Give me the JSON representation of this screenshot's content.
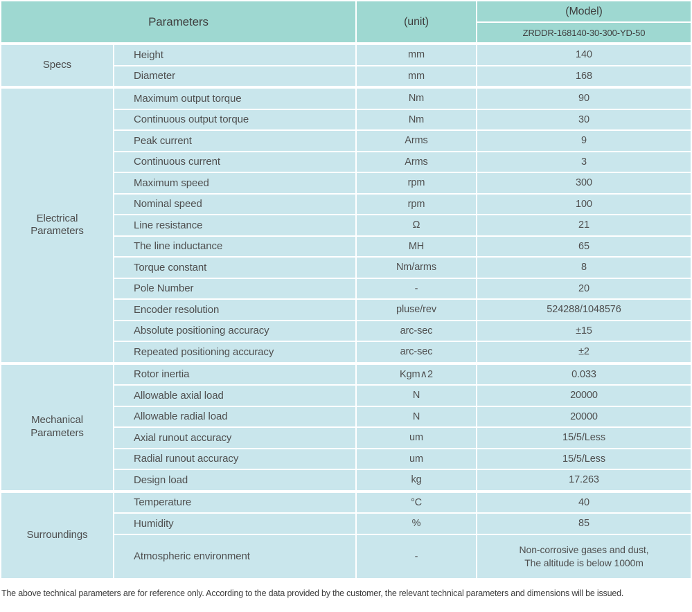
{
  "header": {
    "parameters_label": "Parameters",
    "unit_label": "(unit)",
    "model_label": "(Model)",
    "model_number": "ZRDDR-168140-30-300-YD-50"
  },
  "sections": [
    {
      "name": "Specs",
      "rows": [
        {
          "param": "Height",
          "unit": "mm",
          "value": "140"
        },
        {
          "param": "Diameter",
          "unit": "mm",
          "value": "168"
        }
      ]
    },
    {
      "name": "Electrical\nParameters",
      "rows": [
        {
          "param": "Maximum output torque",
          "unit": "Nm",
          "value": "90"
        },
        {
          "param": "Continuous output torque",
          "unit": "Nm",
          "value": "30"
        },
        {
          "param": "Peak current",
          "unit": "Arms",
          "value": "9"
        },
        {
          "param": "Continuous current",
          "unit": "Arms",
          "value": "3"
        },
        {
          "param": "Maximum speed",
          "unit": "rpm",
          "value": "300"
        },
        {
          "param": "Nominal speed",
          "unit": "rpm",
          "value": "100"
        },
        {
          "param": "Line resistance",
          "unit": "Ω",
          "value": "21"
        },
        {
          "param": "The line inductance",
          "unit": "MH",
          "value": "65"
        },
        {
          "param": "Torque constant",
          "unit": "Nm/arms",
          "value": "8"
        },
        {
          "param": "Pole Number",
          "unit": "-",
          "value": "20"
        },
        {
          "param": "Encoder resolution",
          "unit": "pluse/rev",
          "value": "524288/1048576"
        },
        {
          "param": "Absolute positioning accuracy",
          "unit": "arc-sec",
          "value": "±15"
        },
        {
          "param": "Repeated positioning accuracy",
          "unit": "arc-sec",
          "value": "±2"
        }
      ]
    },
    {
      "name": "Mechanical\nParameters",
      "rows": [
        {
          "param": "Rotor inertia",
          "unit": "Kgm∧2",
          "value": "0.033"
        },
        {
          "param": "Allowable axial load",
          "unit": "N",
          "value": "20000"
        },
        {
          "param": "Allowable radial load",
          "unit": "N",
          "value": "20000"
        },
        {
          "param": "Axial runout accuracy",
          "unit": "um",
          "value": "15/5/Less"
        },
        {
          "param": "Radial runout accuracy",
          "unit": "um",
          "value": "15/5/Less"
        },
        {
          "param": "Design load",
          "unit": "kg",
          "value": "17.263"
        }
      ]
    },
    {
      "name": "Surroundings",
      "rows": [
        {
          "param": "Temperature",
          "unit": "°C",
          "value": "40"
        },
        {
          "param": "Humidity",
          "unit": "%",
          "value": "85"
        },
        {
          "param": "Atmospheric environment",
          "unit": "-",
          "value": "Non-corrosive gases and dust,\nThe altitude is below 1000m"
        }
      ]
    }
  ],
  "footer": {
    "note": "The above technical parameters are for reference only. According to the data provided by the customer, the relevant technical parameters and dimensions will be issued."
  },
  "colors": {
    "header_bg": "#9ed8d1",
    "cell_bg": "#c9e6ec",
    "grid": "#ffffff",
    "text": "#4f4f4f"
  }
}
